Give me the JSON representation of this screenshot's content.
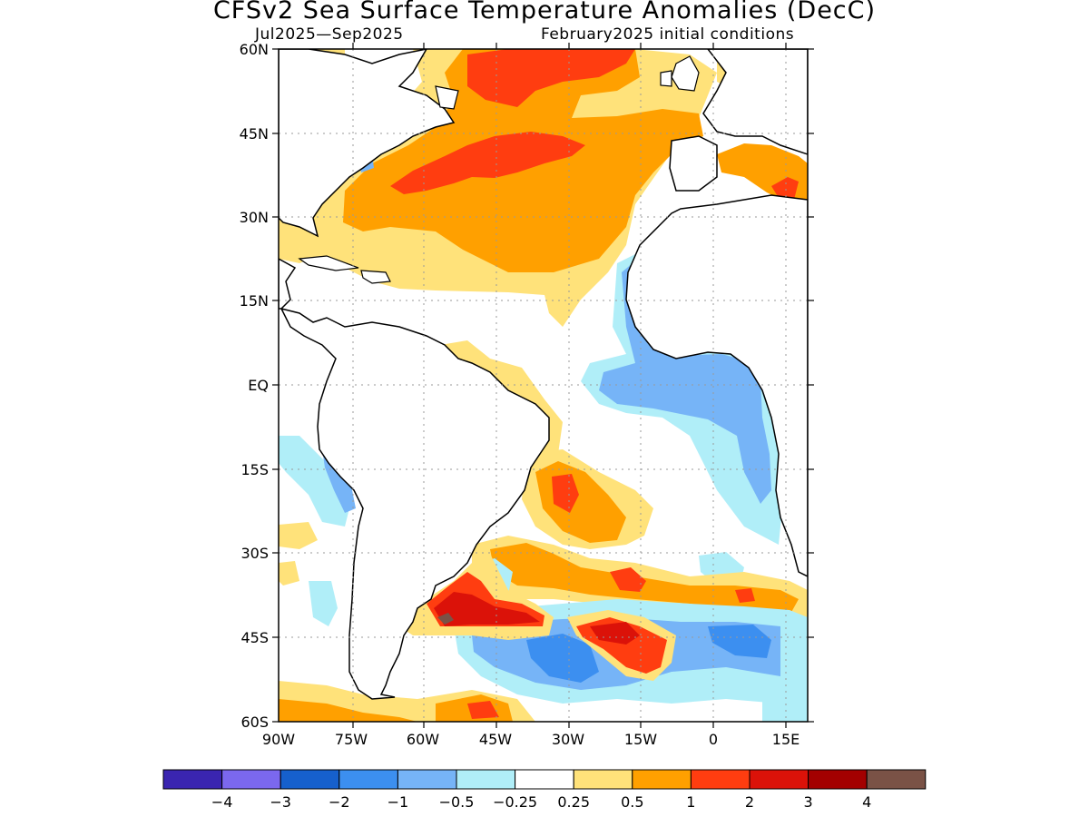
{
  "title": "CFSv2 Sea Surface Temperature Anomalies (DecC)",
  "subtitle_left": "Jul2025—Sep2025",
  "subtitle_right": "February2025 initial conditions",
  "lat_labels": [
    "60N",
    "45N",
    "30N",
    "15N",
    "EQ",
    "15S",
    "30S",
    "45S",
    "60S"
  ],
  "lon_labels": [
    "90W",
    "75W",
    "60W",
    "45W",
    "30W",
    "15W",
    "0",
    "15E"
  ],
  "colorbar": {
    "colors": [
      "#3a25b0",
      "#7b68ee",
      "#1660cd",
      "#3c8ff0",
      "#76b4f7",
      "#b0eef8",
      "#ffffff",
      "#ffe27a",
      "#ffa000",
      "#ff3d10",
      "#db1209",
      "#a30000",
      "#7a5246"
    ],
    "labels": [
      "-4",
      "-3",
      "-2",
      "-1",
      "-0.5",
      "-0.25",
      "0.25",
      "0.5",
      "1",
      "2",
      "3",
      "4"
    ]
  },
  "map_colors": {
    "ocean": "#ffffff",
    "land": "#ffffff",
    "coastline": "#000000",
    "grid": "#9a9a9a",
    "anom_0p25_0p5": "#ffe27a",
    "anom_0p5_1": "#ffa000",
    "anom_1_2": "#ff3d10",
    "anom_2_3": "#db1209",
    "anom_4plus": "#7a5246",
    "anom_m0p25_m0p5": "#b0eef8",
    "anom_m0p5_m1": "#76b4f7",
    "anom_m1_m2": "#3c8ff0"
  }
}
